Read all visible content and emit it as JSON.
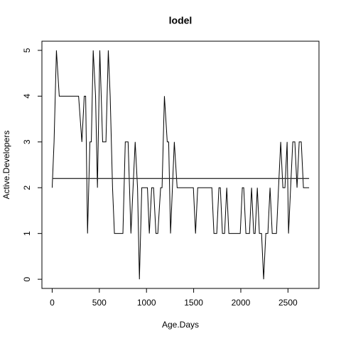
{
  "chart_data": {
    "type": "line",
    "title": "lodel",
    "x_label": "Age.Days",
    "y_label": "Active.Developers",
    "x": [
      0,
      20,
      45,
      75,
      280,
      315,
      340,
      355,
      375,
      400,
      415,
      435,
      460,
      480,
      505,
      535,
      570,
      595,
      615,
      640,
      660,
      750,
      775,
      805,
      835,
      880,
      905,
      925,
      950,
      1010,
      1030,
      1055,
      1075,
      1100,
      1120,
      1150,
      1165,
      1190,
      1220,
      1235,
      1255,
      1295,
      1325,
      1497,
      1520,
      1543,
      1693,
      1715,
      1745,
      1768,
      1783,
      1805,
      1828,
      1851,
      1873,
      1994,
      2016,
      2031,
      2054,
      2092,
      2114,
      2137,
      2152,
      2175,
      2197,
      2220,
      2242,
      2265,
      2287,
      2310,
      2333,
      2378,
      2400,
      2423,
      2446,
      2468,
      2491,
      2506,
      2528,
      2551,
      2573,
      2596,
      2619,
      2641,
      2664,
      2724
    ],
    "series": [
      {
        "name": "Active.Developers",
        "color": "#000000",
        "values": [
          2,
          3,
          5,
          4,
          4,
          3,
          4,
          4,
          1,
          3,
          3,
          5,
          4,
          2,
          5,
          3,
          3,
          5,
          4,
          2,
          1,
          1,
          3,
          3,
          1,
          3,
          2,
          0,
          2,
          2,
          1,
          2,
          2,
          1,
          1,
          2,
          2,
          4,
          3,
          3,
          1,
          3,
          2,
          2,
          1,
          2,
          2,
          1,
          1,
          2,
          2,
          1,
          1,
          2,
          1,
          1,
          2,
          2,
          1,
          1,
          2,
          1,
          1,
          2,
          1,
          1,
          0,
          1,
          1,
          2,
          1,
          1,
          2,
          3,
          2,
          2,
          3,
          1,
          2,
          3,
          3,
          2,
          3,
          3,
          2,
          2
        ]
      }
    ],
    "hline": 2.2,
    "xlim": [
      -108.8,
      2828.8
    ],
    "xticks": [
      0,
      500,
      1000,
      1500,
      2000,
      2500
    ],
    "ylim": [
      -0.2,
      5.2
    ],
    "yticks": [
      0,
      1,
      2,
      3,
      4,
      5
    ]
  }
}
